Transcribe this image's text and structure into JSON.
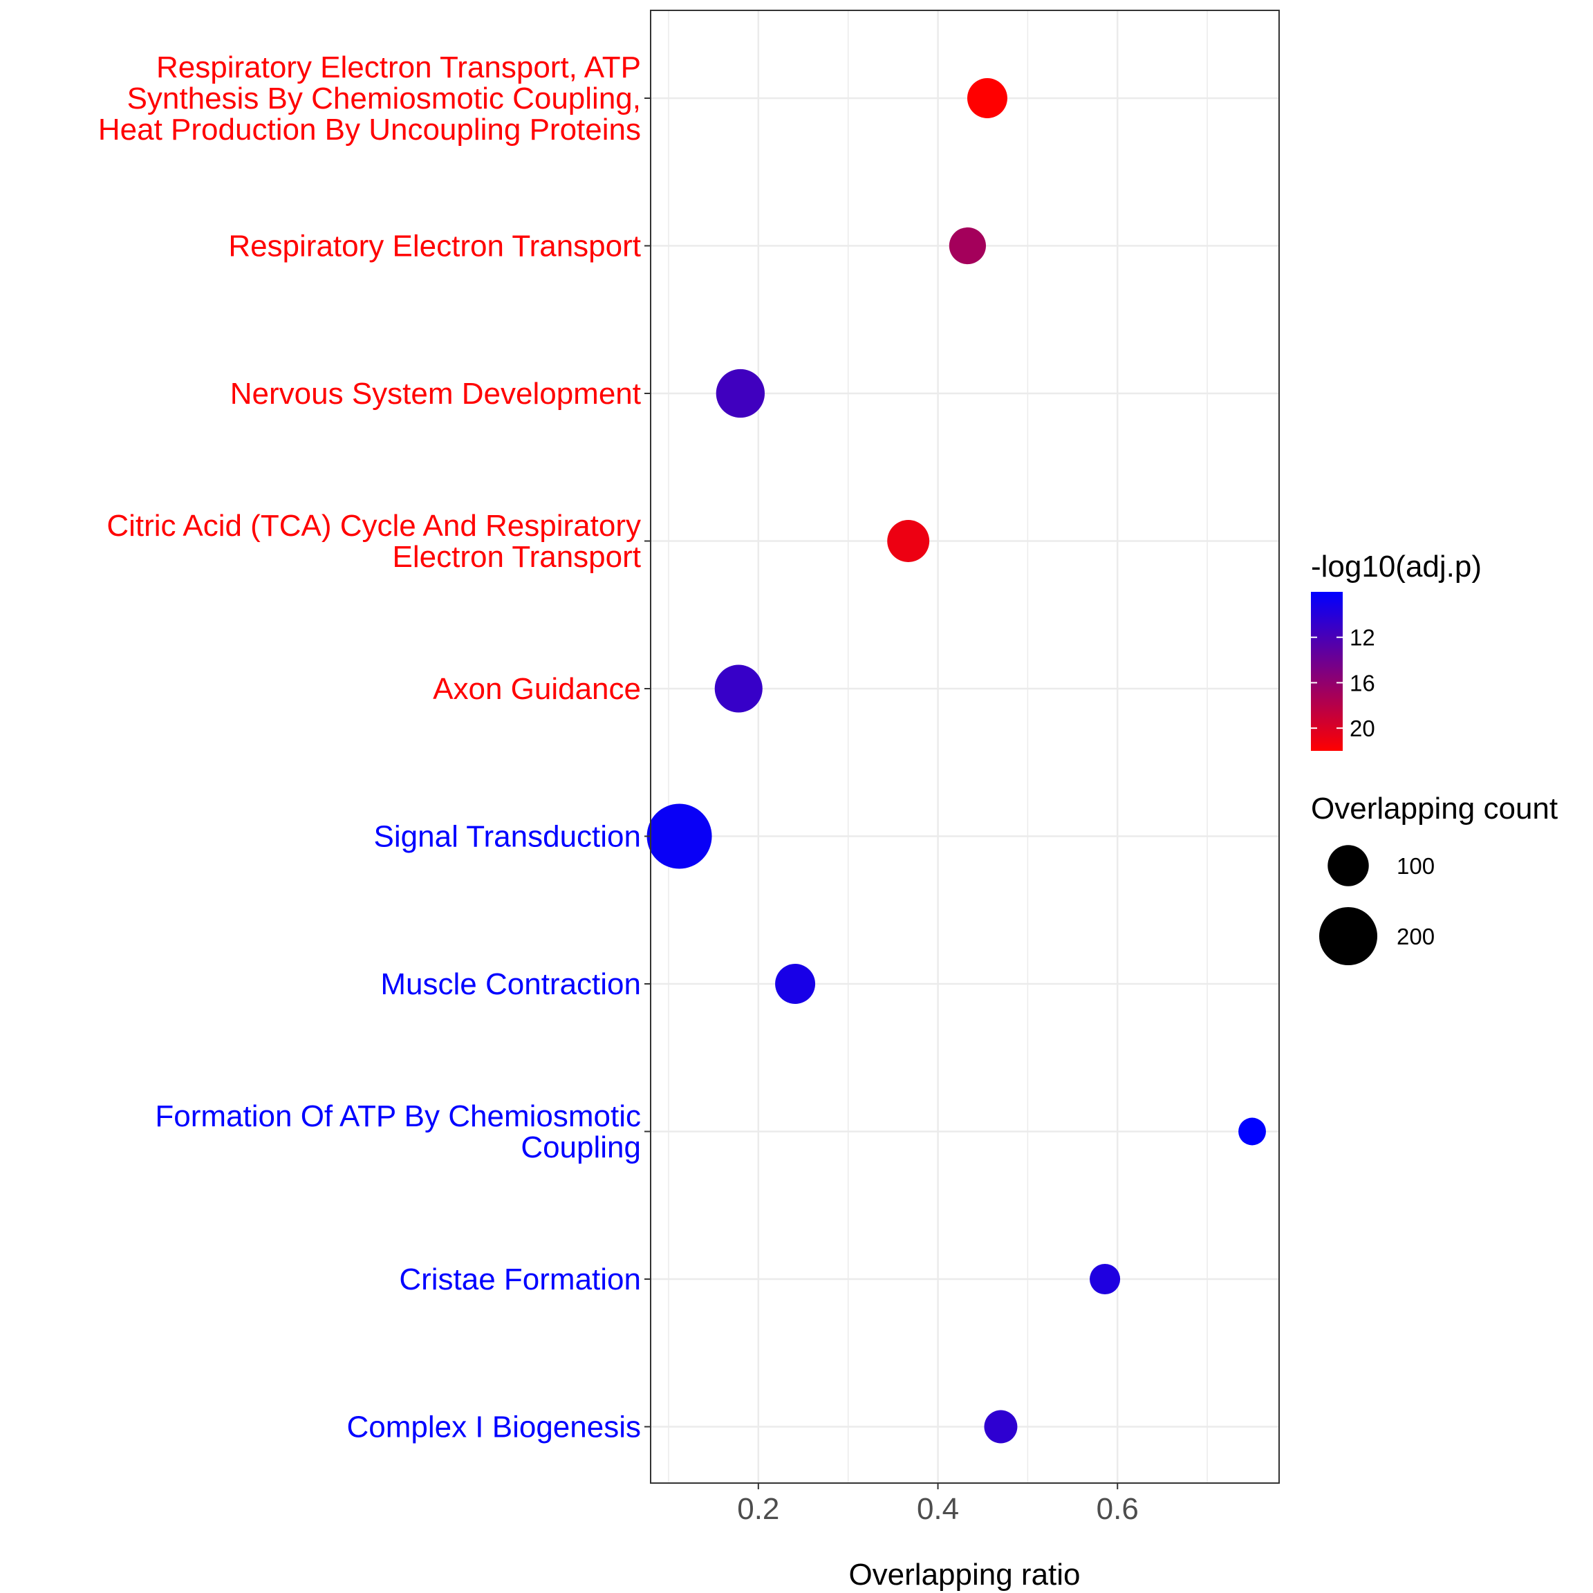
{
  "chart_data": {
    "type": "scatter",
    "xlabel": "Overlapping ratio",
    "ylabel": "",
    "xlim": [
      0.08,
      0.78
    ],
    "xticks": [
      0.2,
      0.4,
      0.6
    ],
    "xtick_labels": [
      "0.2",
      "0.4",
      "0.6"
    ],
    "grid": true,
    "categories": [
      {
        "lines": [
          "Respiratory Electron Transport, ATP",
          "Synthesis By Chemiosmotic Coupling,",
          "Heat Production By Uncoupling Proteins"
        ],
        "label_color": "#ff0000"
      },
      {
        "lines": [
          "Respiratory Electron Transport"
        ],
        "label_color": "#ff0000"
      },
      {
        "lines": [
          "Nervous System Development"
        ],
        "label_color": "#ff0000"
      },
      {
        "lines": [
          "Citric Acid (TCA) Cycle And Respiratory",
          "Electron Transport"
        ],
        "label_color": "#ff0000"
      },
      {
        "lines": [
          "Axon Guidance"
        ],
        "label_color": "#ff0000"
      },
      {
        "lines": [
          "Signal Transduction"
        ],
        "label_color": "#0000ff"
      },
      {
        "lines": [
          "Muscle Contraction"
        ],
        "label_color": "#0000ff"
      },
      {
        "lines": [
          "Formation Of ATP By Chemiosmotic",
          "Coupling"
        ],
        "label_color": "#0000ff"
      },
      {
        "lines": [
          "Cristae Formation"
        ],
        "label_color": "#0000ff"
      },
      {
        "lines": [
          "Complex I Biogenesis"
        ],
        "label_color": "#0000ff"
      }
    ],
    "points": [
      {
        "x": 0.455,
        "neg_log10_adj_p": 22,
        "count": 95
      },
      {
        "x": 0.433,
        "neg_log10_adj_p": 17,
        "count": 80
      },
      {
        "x": 0.18,
        "neg_log10_adj_p": 11.5,
        "count": 140
      },
      {
        "x": 0.367,
        "neg_log10_adj_p": 21,
        "count": 105
      },
      {
        "x": 0.178,
        "neg_log10_adj_p": 11,
        "count": 135
      },
      {
        "x": 0.112,
        "neg_log10_adj_p": 8.5,
        "count": 250
      },
      {
        "x": 0.241,
        "neg_log10_adj_p": 9.3,
        "count": 95
      },
      {
        "x": 0.75,
        "neg_log10_adj_p": 8,
        "count": 45
      },
      {
        "x": 0.586,
        "neg_log10_adj_p": 9.7,
        "count": 55
      },
      {
        "x": 0.47,
        "neg_log10_adj_p": 10.5,
        "count": 65
      }
    ],
    "legend": {
      "placement": "right",
      "color": {
        "title": "-log10(adj.p)",
        "breaks": [
          12,
          16,
          20
        ],
        "labels": [
          "12",
          "16",
          "20"
        ],
        "range": [
          8,
          22
        ],
        "low_color": "#0000ff",
        "high_color": "#ff0000"
      },
      "size": {
        "title": "Overlapping count",
        "breaks": [
          100,
          200
        ],
        "labels": [
          "100",
          "200"
        ],
        "max_count": 250
      }
    }
  }
}
